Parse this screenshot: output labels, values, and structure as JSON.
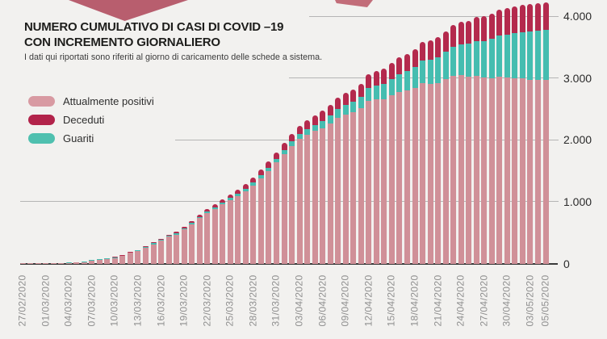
{
  "title": {
    "line1": "NUMERO CUMULATIVO DI CASI DI COVID –19",
    "line2": "CON INCREMENTO GIORNALIERO"
  },
  "subtitle": "I dati qui riportati sono riferiti al giorno di caricamento delle schede a sistema.",
  "legend": {
    "items": [
      {
        "label": "Attualmente positivi",
        "color": "#d89aa2"
      },
      {
        "label": "Deceduti",
        "color": "#b2234a"
      },
      {
        "label": "Guariti",
        "color": "#4fc0af"
      }
    ]
  },
  "colors": {
    "background": "#f2f1ef",
    "bar_positivi": "#d09098",
    "bar_guariti": "#45bdb0",
    "bar_deceduti": "#b42a4d",
    "gridline": "#b5b5b5",
    "axis": "#3a3a3a"
  },
  "chart_data": {
    "type": "bar",
    "stacked": true,
    "stack_order_bottom_to_top": [
      "Attualmente positivi",
      "Guariti",
      "Deceduti"
    ],
    "title": "Numero cumulativo di casi di COVID-19 con incremento giornaliero",
    "xlabel": "",
    "ylabel": "",
    "ylim": [
      0,
      4300
    ],
    "grid": true,
    "legend_position": "upper-left",
    "y_ticks": [
      {
        "value": 0,
        "label": "0"
      },
      {
        "value": 1000,
        "label": "1.000"
      },
      {
        "value": 2000,
        "label": "2.000"
      },
      {
        "value": 3000,
        "label": "3.000"
      },
      {
        "value": 4000,
        "label": "4.000"
      }
    ],
    "x": [
      "27/02/2020",
      "28/02/2020",
      "29/02/2020",
      "01/03/2020",
      "02/03/2020",
      "03/03/2020",
      "04/03/2020",
      "05/03/2020",
      "06/03/2020",
      "07/03/2020",
      "08/03/2020",
      "09/03/2020",
      "10/03/2020",
      "11/03/2020",
      "12/03/2020",
      "13/03/2020",
      "14/03/2020",
      "15/03/2020",
      "16/03/2020",
      "17/03/2020",
      "18/03/2020",
      "19/03/2020",
      "20/03/2020",
      "21/03/2020",
      "22/03/2020",
      "23/03/2020",
      "24/03/2020",
      "25/03/2020",
      "26/03/2020",
      "27/03/2020",
      "28/03/2020",
      "29/03/2020",
      "30/03/2020",
      "31/03/2020",
      "01/04/2020",
      "02/04/2020",
      "03/04/2020",
      "04/04/2020",
      "05/04/2020",
      "06/04/2020",
      "07/04/2020",
      "08/04/2020",
      "09/04/2020",
      "10/04/2020",
      "11/04/2020",
      "12/04/2020",
      "13/04/2020",
      "14/04/2020",
      "15/04/2020",
      "16/04/2020",
      "17/04/2020",
      "18/04/2020",
      "19/04/2020",
      "20/04/2020",
      "21/04/2020",
      "22/04/2020",
      "23/04/2020",
      "24/04/2020",
      "25/04/2020",
      "26/04/2020",
      "27/04/2020",
      "28/04/2020",
      "29/04/2020",
      "30/04/2020",
      "01/05/2020",
      "02/05/2020",
      "03/05/2020",
      "04/05/2020",
      "05/05/2020"
    ],
    "x_tick_indices": [
      0,
      3,
      6,
      9,
      12,
      15,
      18,
      21,
      24,
      27,
      30,
      33,
      36,
      39,
      42,
      45,
      48,
      51,
      54,
      57,
      60,
      63,
      66,
      68
    ],
    "series": [
      {
        "name": "Attualmente positivi",
        "color": "#d09098",
        "values": [
          3,
          3,
          5,
          7,
          8,
          11,
          13,
          17,
          22,
          46,
          61,
          72,
          91,
          119,
          171,
          199,
          251,
          313,
          369,
          435,
          470,
          555,
          638,
          735,
          812,
          879,
          955,
          1026,
          1096,
          1175,
          1263,
          1381,
          1498,
          1633,
          1767,
          1900,
          2012,
          2083,
          2142,
          2191,
          2269,
          2355,
          2411,
          2445,
          2508,
          2630,
          2651,
          2661,
          2719,
          2776,
          2802,
          2836,
          2919,
          2911,
          2921,
          2980,
          3038,
          3046,
          3023,
          3034,
          3005,
          3001,
          3016,
          3004,
          3000,
          2994,
          2976,
          2975,
          2974
        ]
      },
      {
        "name": "Guariti",
        "color": "#45bdb0",
        "values": [
          0,
          1,
          1,
          1,
          2,
          2,
          3,
          4,
          6,
          8,
          9,
          10,
          10,
          11,
          12,
          12,
          13,
          14,
          15,
          16,
          17,
          18,
          20,
          22,
          24,
          26,
          29,
          32,
          35,
          39,
          43,
          47,
          52,
          58,
          65,
          73,
          82,
          92,
          103,
          115,
          128,
          142,
          157,
          173,
          190,
          208,
          227,
          247,
          268,
          290,
          313,
          337,
          362,
          388,
          415,
          443,
          472,
          502,
          533,
          565,
          598,
          632,
          667,
          700,
          726,
          750,
          772,
          788,
          800
        ]
      },
      {
        "name": "Deceduti",
        "color": "#b42a4d",
        "values": [
          0,
          0,
          0,
          0,
          0,
          0,
          0,
          0,
          0,
          1,
          2,
          3,
          4,
          5,
          7,
          9,
          11,
          13,
          16,
          19,
          23,
          27,
          32,
          38,
          44,
          50,
          56,
          62,
          69,
          76,
          84,
          92,
          100,
          109,
          118,
          127,
          136,
          145,
          155,
          164,
          173,
          183,
          192,
          202,
          212,
          222,
          232,
          242,
          253,
          264,
          275,
          287,
          299,
          311,
          324,
          337,
          350,
          362,
          374,
          386,
          397,
          407,
          417,
          426,
          434,
          441,
          447,
          452,
          456
        ]
      }
    ]
  }
}
